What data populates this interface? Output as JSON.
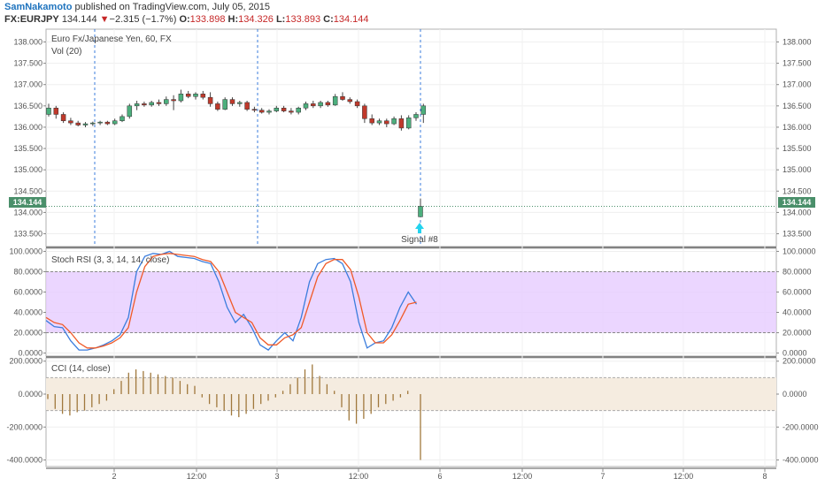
{
  "header": {
    "author": "SamNakamoto",
    "published_text": "published on TradingView.com, July 05, 2015",
    "symbol": "FX:EURJPY",
    "last": "134.144",
    "change_arrow": "▼",
    "change": "−2.315 (−1.7%)",
    "o_label": "O:",
    "o_value": "133.898",
    "h_label": "H:",
    "h_value": "134.326",
    "l_label": "L:",
    "l_value": "133.893",
    "c_label": "C:",
    "c_value": "134.144"
  },
  "main_pane": {
    "title": "Euro Fx/Japanese Yen, 60, FX",
    "vol_label": "Vol (20)",
    "ticks": [
      "138.000",
      "137.500",
      "137.000",
      "136.500",
      "136.000",
      "135.500",
      "135.000",
      "134.500",
      "134.000",
      "133.500"
    ],
    "tick_values": [
      138.0,
      137.5,
      137.0,
      136.5,
      136.0,
      135.5,
      135.0,
      134.5,
      134.0,
      133.5
    ],
    "price_label": "134.144",
    "price_value": 134.144,
    "signal_label": "Signal #8",
    "up_color": "#4caf7d",
    "down_color": "#c0392b"
  },
  "stoch_pane": {
    "title": "Stoch RSI (3, 3, 14, 14, close)",
    "ticks": [
      "100.0000",
      "80.0000",
      "60.0000",
      "40.0000",
      "20.0000",
      "0.0000"
    ],
    "tick_values": [
      100,
      80,
      60,
      40,
      20,
      0
    ],
    "band": [
      20,
      80
    ],
    "band_color": "#e6ccff",
    "k_color": "#3b7ddd",
    "d_color": "#f05a28"
  },
  "cci_pane": {
    "title": "CCI (14, close)",
    "ticks": [
      "200.0000",
      "0.0000",
      "-200.0000",
      "-400.0000"
    ],
    "tick_values": [
      200,
      0,
      -200,
      -400
    ],
    "band": [
      -100,
      100
    ],
    "band_color": "#f5ece0",
    "bar_color": "#a0783c"
  },
  "x_axis": {
    "labels": [
      "2",
      "12:00",
      "3",
      "12:00",
      "6",
      "12:00",
      "7",
      "12:00",
      "8"
    ]
  },
  "chart_data": [
    {
      "type": "candlestick",
      "title": "Euro Fx/Japanese Yen, 60, FX",
      "ylim": [
        133.2,
        138.3
      ],
      "candles": [
        {
          "o": 136.3,
          "h": 136.55,
          "l": 136.25,
          "c": 136.45
        },
        {
          "o": 136.45,
          "h": 136.5,
          "l": 136.2,
          "c": 136.3
        },
        {
          "o": 136.3,
          "h": 136.35,
          "l": 136.1,
          "c": 136.15
        },
        {
          "o": 136.15,
          "h": 136.22,
          "l": 136.05,
          "c": 136.1
        },
        {
          "o": 136.1,
          "h": 136.15,
          "l": 136.02,
          "c": 136.05
        },
        {
          "o": 136.05,
          "h": 136.12,
          "l": 136.0,
          "c": 136.08
        },
        {
          "o": 136.08,
          "h": 136.13,
          "l": 136.03,
          "c": 136.1
        },
        {
          "o": 136.1,
          "h": 136.15,
          "l": 136.05,
          "c": 136.12
        },
        {
          "o": 136.12,
          "h": 136.15,
          "l": 136.05,
          "c": 136.08
        },
        {
          "o": 136.08,
          "h": 136.2,
          "l": 136.05,
          "c": 136.15
        },
        {
          "o": 136.15,
          "h": 136.3,
          "l": 136.12,
          "c": 136.25
        },
        {
          "o": 136.25,
          "h": 136.55,
          "l": 136.2,
          "c": 136.5
        },
        {
          "o": 136.5,
          "h": 136.62,
          "l": 136.4,
          "c": 136.55
        },
        {
          "o": 136.55,
          "h": 136.6,
          "l": 136.48,
          "c": 136.52
        },
        {
          "o": 136.52,
          "h": 136.62,
          "l": 136.48,
          "c": 136.58
        },
        {
          "o": 136.58,
          "h": 136.65,
          "l": 136.5,
          "c": 136.55
        },
        {
          "o": 136.55,
          "h": 136.72,
          "l": 136.5,
          "c": 136.65
        },
        {
          "o": 136.65,
          "h": 136.75,
          "l": 136.4,
          "c": 136.62
        },
        {
          "o": 136.62,
          "h": 136.88,
          "l": 136.58,
          "c": 136.78
        },
        {
          "o": 136.78,
          "h": 136.85,
          "l": 136.68,
          "c": 136.72
        },
        {
          "o": 136.72,
          "h": 136.82,
          "l": 136.65,
          "c": 136.78
        },
        {
          "o": 136.78,
          "h": 136.85,
          "l": 136.65,
          "c": 136.7
        },
        {
          "o": 136.7,
          "h": 136.82,
          "l": 136.48,
          "c": 136.55
        },
        {
          "o": 136.55,
          "h": 136.6,
          "l": 136.38,
          "c": 136.42
        },
        {
          "o": 136.42,
          "h": 136.7,
          "l": 136.4,
          "c": 136.65
        },
        {
          "o": 136.65,
          "h": 136.7,
          "l": 136.5,
          "c": 136.55
        },
        {
          "o": 136.55,
          "h": 136.62,
          "l": 136.48,
          "c": 136.58
        },
        {
          "o": 136.58,
          "h": 136.62,
          "l": 136.38,
          "c": 136.42
        },
        {
          "o": 136.42,
          "h": 136.48,
          "l": 136.35,
          "c": 136.4
        },
        {
          "o": 136.4,
          "h": 136.45,
          "l": 136.32,
          "c": 136.35
        },
        {
          "o": 136.35,
          "h": 136.42,
          "l": 136.3,
          "c": 136.38
        },
        {
          "o": 136.38,
          "h": 136.5,
          "l": 136.35,
          "c": 136.45
        },
        {
          "o": 136.45,
          "h": 136.5,
          "l": 136.35,
          "c": 136.38
        },
        {
          "o": 136.38,
          "h": 136.45,
          "l": 136.3,
          "c": 136.35
        },
        {
          "o": 136.35,
          "h": 136.48,
          "l": 136.3,
          "c": 136.45
        },
        {
          "o": 136.45,
          "h": 136.6,
          "l": 136.4,
          "c": 136.55
        },
        {
          "o": 136.55,
          "h": 136.62,
          "l": 136.45,
          "c": 136.5
        },
        {
          "o": 136.5,
          "h": 136.62,
          "l": 136.45,
          "c": 136.58
        },
        {
          "o": 136.58,
          "h": 136.62,
          "l": 136.48,
          "c": 136.52
        },
        {
          "o": 136.52,
          "h": 136.78,
          "l": 136.5,
          "c": 136.72
        },
        {
          "o": 136.72,
          "h": 136.82,
          "l": 136.62,
          "c": 136.65
        },
        {
          "o": 136.65,
          "h": 136.7,
          "l": 136.55,
          "c": 136.6
        },
        {
          "o": 136.6,
          "h": 136.65,
          "l": 136.45,
          "c": 136.5
        },
        {
          "o": 136.5,
          "h": 136.55,
          "l": 136.1,
          "c": 136.2
        },
        {
          "o": 136.2,
          "h": 136.3,
          "l": 136.05,
          "c": 136.1
        },
        {
          "o": 136.1,
          "h": 136.2,
          "l": 136.05,
          "c": 136.15
        },
        {
          "o": 136.15,
          "h": 136.2,
          "l": 136.0,
          "c": 136.08
        },
        {
          "o": 136.08,
          "h": 136.25,
          "l": 136.05,
          "c": 136.2
        },
        {
          "o": 136.2,
          "h": 136.28,
          "l": 135.92,
          "c": 135.98
        },
        {
          "o": 135.98,
          "h": 136.28,
          "l": 135.95,
          "c": 136.22
        },
        {
          "o": 136.22,
          "h": 136.35,
          "l": 136.15,
          "c": 136.3
        },
        {
          "o": 136.3,
          "h": 136.55,
          "l": 136.1,
          "c": 136.5
        },
        {
          "o": 133.898,
          "h": 134.326,
          "l": 133.893,
          "c": 134.144
        }
      ]
    },
    {
      "type": "line",
      "title": "Stoch RSI (3, 3, 14, 14, close)",
      "ylim": [
        0,
        100
      ],
      "series": [
        {
          "values": [
            32,
            26,
            25,
            12,
            3,
            3,
            5,
            8,
            12,
            18,
            35,
            80,
            95,
            98,
            97,
            100,
            95,
            94,
            93,
            90,
            88,
            70,
            45,
            30,
            38,
            25,
            8,
            3,
            12,
            20,
            12,
            35,
            70,
            88,
            92,
            93,
            88,
            70,
            30,
            5,
            10,
            12,
            25,
            45,
            60,
            48
          ]
        },
        {
          "values": [
            35,
            30,
            28,
            20,
            10,
            5,
            5,
            7,
            10,
            15,
            25,
            60,
            85,
            95,
            97,
            98,
            97,
            96,
            95,
            92,
            90,
            80,
            60,
            40,
            35,
            30,
            15,
            8,
            8,
            15,
            18,
            25,
            50,
            75,
            88,
            92,
            92,
            82,
            55,
            20,
            10,
            10,
            18,
            32,
            48,
            50
          ]
        }
      ]
    },
    {
      "type": "bar",
      "title": "CCI (14, close)",
      "ylim": [
        -440,
        220
      ],
      "values": [
        -30,
        -90,
        -120,
        -130,
        -110,
        -100,
        -80,
        -60,
        -40,
        30,
        80,
        130,
        150,
        140,
        130,
        120,
        110,
        100,
        80,
        60,
        50,
        -20,
        -60,
        -80,
        -100,
        -130,
        -140,
        -120,
        -90,
        -60,
        -40,
        -20,
        20,
        60,
        100,
        150,
        180,
        110,
        60,
        20,
        -80,
        -160,
        -180,
        -150,
        -120,
        -80,
        -60,
        -40,
        -20,
        20,
        -400
      ]
    }
  ]
}
